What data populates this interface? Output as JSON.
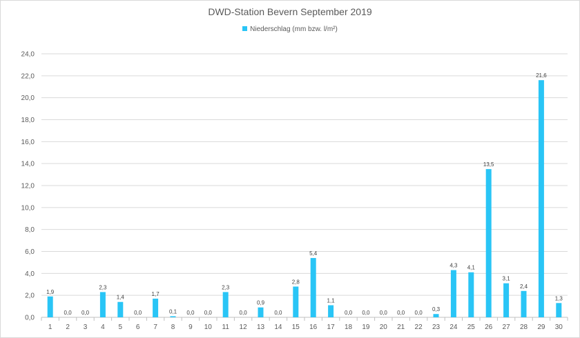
{
  "chart_data": {
    "type": "bar",
    "title": "DWD-Station Bevern September 2019",
    "legend": "Niederschlag (mm bzw. l/m²)",
    "legend_position": "top",
    "color": "#29c5f6",
    "grid": true,
    "categories": [
      "1",
      "2",
      "3",
      "4",
      "5",
      "6",
      "7",
      "8",
      "9",
      "10",
      "11",
      "12",
      "13",
      "14",
      "15",
      "16",
      "17",
      "18",
      "19",
      "20",
      "21",
      "22",
      "23",
      "24",
      "25",
      "26",
      "27",
      "28",
      "29",
      "30"
    ],
    "values": [
      1.9,
      0.0,
      0.0,
      2.3,
      1.4,
      0.0,
      1.7,
      0.1,
      0.0,
      0.0,
      2.3,
      0.0,
      0.9,
      0.0,
      2.8,
      5.4,
      1.1,
      0.0,
      0.0,
      0.0,
      0.0,
      0.0,
      0.3,
      4.3,
      4.1,
      13.5,
      3.1,
      2.4,
      21.6,
      1.3
    ],
    "data_labels": [
      "1,9",
      "0,0",
      "0,0",
      "2,3",
      "1,4",
      "0,0",
      "1,7",
      "0,1",
      "0,0",
      "0,0",
      "2,3",
      "0,0",
      "0,9",
      "0,0",
      "2,8",
      "5,4",
      "1,1",
      "0,0",
      "0,0",
      "0,0",
      "0,0",
      "0,0",
      "0,3",
      "4,3",
      "4,1",
      "13,5",
      "3,1",
      "2,4",
      "21,6",
      "1,3"
    ],
    "ylim": [
      0,
      24
    ],
    "yticks": [
      0,
      2,
      4,
      6,
      8,
      10,
      12,
      14,
      16,
      18,
      20,
      22,
      24
    ],
    "ytick_labels": [
      "0,0",
      "2,0",
      "4,0",
      "6,0",
      "8,0",
      "10,0",
      "12,0",
      "14,0",
      "16,0",
      "18,0",
      "20,0",
      "22,0",
      "24,0"
    ],
    "xlabel": "",
    "ylabel": ""
  }
}
